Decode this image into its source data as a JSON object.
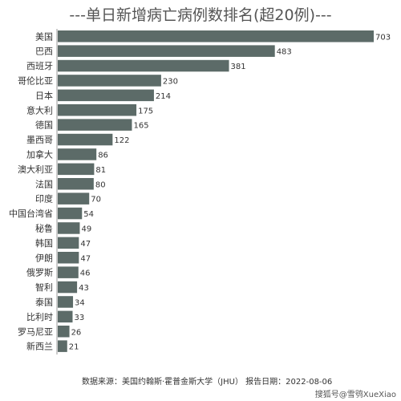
{
  "chart_data": {
    "type": "bar",
    "orientation": "horizontal",
    "title": "---单日新增病亡病例数排名(超20例)---",
    "categories": [
      "美国",
      "巴西",
      "西班牙",
      "哥伦比亚",
      "日本",
      "意大利",
      "德国",
      "墨西哥",
      "加拿大",
      "澳大利亚",
      "法国",
      "印度",
      "中国台湾省",
      "秘鲁",
      "韩国",
      "伊朗",
      "俄罗斯",
      "智利",
      "泰国",
      "比利时",
      "罗马尼亚",
      "新西兰"
    ],
    "values": [
      703,
      483,
      381,
      230,
      214,
      175,
      165,
      122,
      86,
      81,
      80,
      70,
      54,
      49,
      47,
      47,
      46,
      43,
      34,
      33,
      26,
      21
    ],
    "xlim": [
      0,
      703
    ],
    "bar_color": "#5c6b68",
    "grid": false
  },
  "footer": {
    "source": "数据来源：美国约翰斯·霍普金斯大学（JHU） 报告日期：2022-08-06",
    "watermark": "搜狐号@雪鸮XueXiao"
  }
}
